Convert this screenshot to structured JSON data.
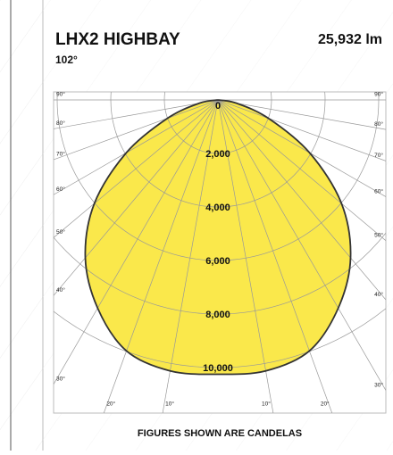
{
  "chart_data": {
    "type": "polar",
    "title": "LHX2 HIGHBAY",
    "subtitle": "102°",
    "annotation": "25,932 lm",
    "footer": "FIGURES SHOWN ARE CANDELAS",
    "x": [
      -90,
      -80,
      -70,
      -60,
      -50,
      -40,
      -30,
      -20,
      -10,
      0,
      10,
      20,
      30,
      40,
      50,
      60,
      70,
      80,
      90
    ],
    "values": [
      0,
      700,
      2000,
      3950,
      6020,
      7700,
      8980,
      9980,
      10280,
      10250,
      10280,
      9980,
      8980,
      7700,
      6020,
      3950,
      2000,
      700,
      0
    ],
    "color": "#fae84b",
    "rlim": [
      0,
      10000
    ],
    "rticks": [
      0,
      {
        "value": 2000,
        "label": "2,000"
      },
      {
        "value": 4000,
        "label": "4,000"
      },
      {
        "value": 6000,
        "label": "6,000"
      },
      {
        "value": 8000,
        "label": "8,000"
      },
      {
        "value": 10000,
        "label": "10,000"
      }
    ],
    "angleticks": [
      {
        "value": 10,
        "label": "10°"
      },
      {
        "value": 20,
        "label": "20°"
      },
      {
        "value": 30,
        "label": "30°"
      },
      {
        "value": 40,
        "label": "40°"
      },
      {
        "value": 50,
        "label": "50°"
      },
      {
        "value": 60,
        "label": "60°"
      },
      {
        "value": 70,
        "label": "70°"
      },
      {
        "value": 80,
        "label": "80°"
      },
      {
        "value": 90,
        "label": "90°"
      }
    ]
  }
}
